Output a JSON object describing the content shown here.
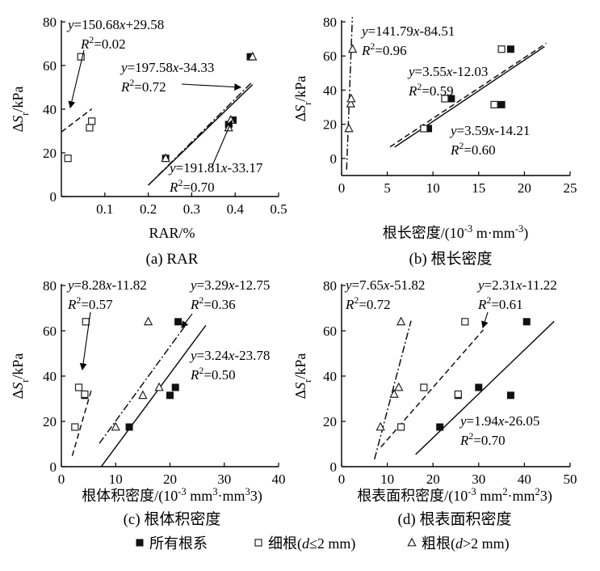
{
  "legend": {
    "all": "所有根系",
    "fine": "细根(d≤2 mm)",
    "coarse": "粗根(d>2 mm)"
  },
  "chart_data": [
    {
      "id": "a",
      "type": "scatter",
      "caption": "(a) RAR",
      "xlabel": "RAR/%",
      "ylabel": "ΔSr/kPa",
      "xlim": [
        0,
        0.5
      ],
      "ylim": [
        0,
        80
      ],
      "xticks": [
        0.1,
        0.2,
        0.3,
        0.4,
        0.5
      ],
      "yticks": [
        0,
        20,
        40,
        60,
        80
      ],
      "xticklabels": [
        "0.1",
        "0.2",
        "0.3",
        "0.4",
        "0.5"
      ],
      "yticklabels": [
        "0",
        "20",
        "40",
        "60",
        "80"
      ],
      "series": [
        {
          "key": "all",
          "marker": "square-filled",
          "points": [
            [
              0.24,
              17.5
            ],
            [
              0.385,
              33
            ],
            [
              0.395,
              35
            ],
            [
              0.435,
              64
            ]
          ]
        },
        {
          "key": "fine",
          "marker": "square-open",
          "points": [
            [
              0.015,
              17.5
            ],
            [
              0.045,
              64
            ],
            [
              0.065,
              31.5
            ],
            [
              0.07,
              34.5
            ]
          ]
        },
        {
          "key": "coarse",
          "marker": "triangle-open",
          "points": [
            [
              0.24,
              17.5
            ],
            [
              0.385,
              31.5
            ],
            [
              0.39,
              35
            ],
            [
              0.44,
              64
            ]
          ]
        }
      ],
      "fits": [
        {
          "series": "fine",
          "style": "dashed",
          "x": [
            0.0,
            0.07
          ],
          "slope": 150.68,
          "intercept": 29.58
        },
        {
          "series": "coarse",
          "style": "dashdot",
          "x": [
            0.2,
            0.44
          ],
          "slope": 197.58,
          "intercept": -34.33
        },
        {
          "series": "all",
          "style": "solid",
          "x": [
            0.2,
            0.44
          ],
          "slope": 191.81,
          "intercept": -33.17
        }
      ],
      "annotations": [
        {
          "eq": "y=150.68x+29.58",
          "r2": "R2=0.02"
        },
        {
          "eq": "y=197.58x-34.33",
          "r2": "R2=0.72"
        },
        {
          "eq": "y=191.81x-33.17",
          "r2": "R2=0.70"
        }
      ]
    },
    {
      "id": "b",
      "type": "scatter",
      "caption": "(b) 根长密度",
      "xlabel": "根长密度/(10-3 m·mm-3)",
      "ylabel": "ΔSr/kPa",
      "xlim": [
        0,
        25
      ],
      "ylim": [
        -10,
        80
      ],
      "xticks": [
        0,
        5,
        10,
        15,
        20,
        25
      ],
      "yticks": [
        0,
        20,
        40,
        60,
        80
      ],
      "xticklabels": [
        "0",
        "5",
        "10",
        "15",
        "20",
        "25"
      ],
      "yticklabels": [
        "0",
        "20",
        "40",
        "60",
        "80"
      ],
      "series": [
        {
          "key": "all",
          "marker": "square-filled",
          "points": [
            [
              9.5,
              17.5
            ],
            [
              12.0,
              35
            ],
            [
              17.5,
              31.5
            ],
            [
              18.5,
              64
            ]
          ]
        },
        {
          "key": "fine",
          "marker": "square-open",
          "points": [
            [
              9.0,
              17.5
            ],
            [
              11.3,
              35
            ],
            [
              16.7,
              31.5
            ],
            [
              17.5,
              64
            ]
          ]
        },
        {
          "key": "coarse",
          "marker": "triangle-open",
          "points": [
            [
              0.8,
              17.5
            ],
            [
              1.0,
              32
            ],
            [
              1.05,
              35
            ],
            [
              1.2,
              64
            ]
          ]
        }
      ],
      "fits": [
        {
          "series": "coarse",
          "style": "dashdot",
          "x": [
            0.55,
            1.18
          ],
          "slope": 141.79,
          "intercept": -84.51
        },
        {
          "series": "fine",
          "style": "dashed",
          "x": [
            5.3,
            22.4
          ],
          "slope": 3.55,
          "intercept": -12.03
        },
        {
          "series": "all",
          "style": "solid",
          "x": [
            5.8,
            22.2
          ],
          "slope": 3.59,
          "intercept": -14.21
        }
      ],
      "annotations": [
        {
          "eq": "y=141.79x-84.51",
          "r2": "R2=0.96"
        },
        {
          "eq": "y=3.55x-12.03",
          "r2": "R2=0.59"
        },
        {
          "eq": "y=3.59x-14.21",
          "r2": "R2=0.60"
        }
      ]
    },
    {
      "id": "c",
      "type": "scatter",
      "caption": "(c) 根体积密度",
      "xlabel": "根体积密度/(10-3 mm3·mm-3)",
      "ylabel": "ΔSr/kPa",
      "xlim": [
        0,
        40
      ],
      "ylim": [
        0,
        80
      ],
      "xticks": [
        0,
        10,
        20,
        30,
        40
      ],
      "yticks": [
        0,
        20,
        40,
        60,
        80
      ],
      "xticklabels": [
        "0",
        "10",
        "20",
        "30",
        "40"
      ],
      "yticklabels": [
        "0",
        "20",
        "40",
        "60",
        "80"
      ],
      "series": [
        {
          "key": "all",
          "marker": "square-filled",
          "points": [
            [
              4.3,
              31.5
            ],
            [
              12.5,
              17.5
            ],
            [
              20.0,
              31.5
            ],
            [
              21.0,
              35
            ],
            [
              21.5,
              64
            ]
          ]
        },
        {
          "key": "fine",
          "marker": "square-open",
          "points": [
            [
              2.5,
              17.5
            ],
            [
              3.2,
              35
            ],
            [
              4.3,
              32
            ],
            [
              4.5,
              64
            ]
          ]
        },
        {
          "key": "coarse",
          "marker": "triangle-open",
          "points": [
            [
              10.0,
              17.5
            ],
            [
              15.0,
              31.5
            ],
            [
              16.0,
              64
            ],
            [
              18.0,
              35
            ]
          ]
        }
      ],
      "fits": [
        {
          "series": "fine",
          "style": "dashed",
          "x": [
            2.0,
            5.5
          ],
          "slope": 8.28,
          "intercept": -11.82
        },
        {
          "series": "coarse",
          "style": "dashdot",
          "x": [
            7.0,
            23.0
          ],
          "slope": 3.29,
          "intercept": -12.75
        },
        {
          "series": "all",
          "style": "solid",
          "x": [
            7.3,
            26.6
          ],
          "slope": 3.24,
          "intercept": -23.78
        }
      ],
      "annotations": [
        {
          "eq": "y=8.28x-11.82",
          "r2": "R2=0.57"
        },
        {
          "eq": "y=3.29x-12.75",
          "r2": "R2=0.36"
        },
        {
          "eq": "y=3.24x-23.78",
          "r2": "R2=0.50"
        }
      ]
    },
    {
      "id": "d",
      "type": "scatter",
      "caption": "(d) 根表面积密度",
      "xlabel": "根表面积密度/(10-3 mm2·mm-3)",
      "ylabel": "ΔSr/kPa",
      "xlim": [
        0,
        50
      ],
      "ylim": [
        0,
        80
      ],
      "xticks": [
        0,
        10,
        20,
        30,
        40,
        50
      ],
      "yticks": [
        0,
        20,
        40,
        60,
        80
      ],
      "xticklabels": [
        "0",
        "10",
        "20",
        "30",
        "40",
        "50"
      ],
      "yticklabels": [
        "0",
        "20",
        "40",
        "60",
        "80"
      ],
      "series": [
        {
          "key": "all",
          "marker": "square-filled",
          "points": [
            [
              21.5,
              17.5
            ],
            [
              25.5,
              31.5
            ],
            [
              30.0,
              35
            ],
            [
              37.0,
              31.5
            ],
            [
              40.5,
              64
            ]
          ]
        },
        {
          "key": "fine",
          "marker": "square-open",
          "points": [
            [
              13.0,
              17.5
            ],
            [
              18.0,
              35
            ],
            [
              25.5,
              32
            ],
            [
              27.0,
              64
            ]
          ]
        },
        {
          "key": "coarse",
          "marker": "triangle-open",
          "points": [
            [
              8.5,
              17.5
            ],
            [
              11.5,
              32
            ],
            [
              12.5,
              35
            ],
            [
              13.0,
              64
            ]
          ]
        }
      ],
      "fits": [
        {
          "series": "coarse",
          "style": "dashdot",
          "x": [
            7.2,
            15.2
          ],
          "slope": 7.65,
          "intercept": -51.82
        },
        {
          "series": "fine",
          "style": "dashed",
          "x": [
            8.6,
            31.0
          ],
          "slope": 2.31,
          "intercept": -11.22
        },
        {
          "series": "all",
          "style": "solid",
          "x": [
            16.2,
            46.5
          ],
          "slope": 1.94,
          "intercept": -26.05
        }
      ],
      "annotations": [
        {
          "eq": "y=7.65x-51.82",
          "r2": "R2=0.72"
        },
        {
          "eq": "y=2.31x-11.22",
          "r2": "R2=0.61"
        },
        {
          "eq": "y=1.94x-26.05",
          "r2": "R2=0.70"
        }
      ]
    }
  ]
}
